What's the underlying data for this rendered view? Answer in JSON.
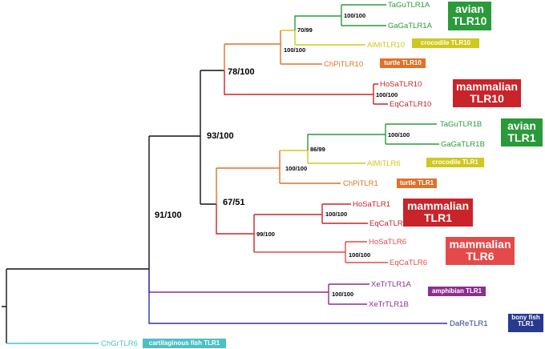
{
  "colors": {
    "avian": "#2a9a3a",
    "crocodile": "#cfc81e",
    "turtle": "#e0712a",
    "mammalian": "#c8242a",
    "mammalian_light": "#e44a4a",
    "amphibian": "#8b2f8f",
    "bony_fish": "#283a8f",
    "cartilaginous_fish": "#4cc0c4",
    "root": "#111111"
  },
  "taxa": {
    "tagu_tlr1a": "TaGuTLR1A",
    "gaga_tlr1a": "GaGaTLR1A",
    "almi_tlr10": "AlMiTLR10",
    "chpi_tlr10": "ChPiTLR10",
    "hosa_tlr10": "HoSaTLR10",
    "eqca_tlr10": "EqCaTLR10",
    "tagu_tlr1b": "TaGuTLR1B",
    "gaga_tlr1b": "GaGaTLR1B",
    "almi_tlr6": "AlMiTLR6",
    "chpi_tlr1": "ChPiTLR1",
    "hosa_tlr1": "HoSaTLR1",
    "eqca_tlr1": "EqCaTLR1",
    "hosa_tlr6": "HoSaTLR6",
    "eqca_tlr6": "EqCaTLR6",
    "xetr_tlr1a": "XeTrTLR1A",
    "xetr_tlr1b": "XeTrTLR1B",
    "dare_tlr1": "DaReTLR1",
    "chgr_tlr6": "ChGrTLR6"
  },
  "support": {
    "avian_tlr10": "100/100",
    "avian_croc_tlr10": "70/99",
    "sauropsid_tlr10": "100/100",
    "tlr10_clade": "78/100",
    "mammal_tlr10": "100/100",
    "tlr10_tlr1": "93/100",
    "avian_tlr1": "100/100",
    "avian_croc_tlr1": "86/99",
    "sauropsid_tlr1": "100/100",
    "tlr1_clade": "67/51",
    "mammal_tlr1": "100/100",
    "mammal_tlr1_tlr6": "99/100",
    "mammal_tlr6": "100/100",
    "tetrapod": "91/100",
    "amphibian": "100/100"
  },
  "groups": {
    "avian_tlr10": [
      "avian",
      "TLR10"
    ],
    "crocodile_tlr10": "crocodile TLR10",
    "turtle_tlr10": "turtle TLR10",
    "mammalian_tlr10": [
      "mammalian",
      "TLR10"
    ],
    "avian_tlr1": [
      "avian",
      "TLR1"
    ],
    "crocodile_tlr1": "crocodile TLR1",
    "turtle_tlr1": "turtle TLR1",
    "mammalian_tlr1": [
      "mammalian",
      "TLR1"
    ],
    "mammalian_tlr6": [
      "mammalian",
      "TLR6"
    ],
    "amphibian_tlr1": "amphibian TLR1",
    "bony_fish_tlr1": [
      "bony fish",
      "TLR1"
    ],
    "cartilaginous_fish_tlr1": "cartilaginous fish TLR1"
  }
}
